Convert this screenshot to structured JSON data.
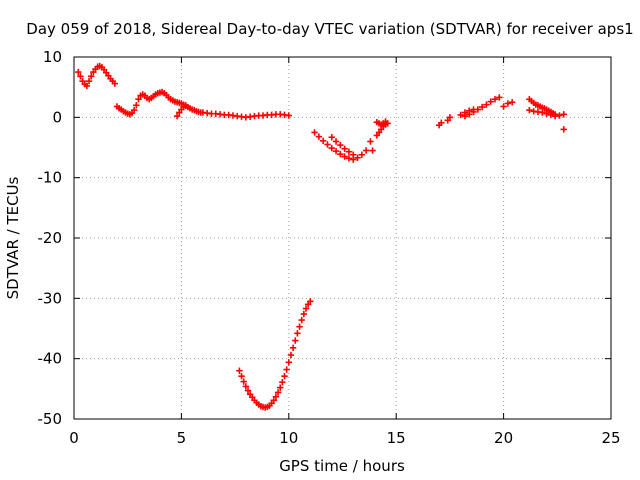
{
  "chart_data": {
    "type": "scatter",
    "title": "Day 059 of 2018, Sidereal Day-to-day VTEC variation (SDTVAR) for receiver aps1",
    "xlabel": "GPS time / hours",
    "ylabel": "SDTVAR / TECUs",
    "xlim": [
      0,
      25
    ],
    "ylim": [
      -50,
      10
    ],
    "xticks": [
      0,
      5,
      10,
      15,
      20,
      25
    ],
    "yticks": [
      10,
      0,
      -10,
      -20,
      -30,
      -40,
      -50
    ],
    "xtick_labels": [
      "0",
      "5",
      "10",
      "15",
      "20",
      "25"
    ],
    "ytick_labels": [
      "10",
      "0",
      "-10",
      "-20",
      "-30",
      "-40",
      "-50"
    ],
    "grid": true,
    "marker": "+",
    "color": "#ff0000",
    "series": [
      {
        "name": "aps1 SDTVAR",
        "segments": [
          {
            "x": [
              0.2,
              0.3,
              0.4,
              0.5,
              0.6,
              0.7,
              0.8,
              0.9,
              1.0,
              1.1,
              1.2,
              1.3,
              1.4,
              1.5,
              1.6,
              1.7,
              1.8,
              1.9
            ],
            "y": [
              7.5,
              6.8,
              6.0,
              5.5,
              5.2,
              6.0,
              6.8,
              7.5,
              8.0,
              8.4,
              8.5,
              8.3,
              7.9,
              7.4,
              6.9,
              6.4,
              6.0,
              5.6
            ]
          },
          {
            "x": [
              2.0,
              2.1,
              2.2,
              2.3,
              2.4,
              2.5,
              2.6,
              2.7,
              2.8,
              2.9,
              3.0,
              3.1,
              3.2,
              3.3,
              3.4,
              3.5,
              3.6,
              3.7,
              3.8,
              3.9,
              4.0,
              4.1,
              4.2,
              4.3,
              4.4,
              4.5,
              4.6,
              4.7,
              4.8,
              4.9,
              5.0,
              5.1,
              5.2,
              5.3,
              5.4,
              5.5,
              5.6,
              5.7,
              5.8,
              5.9,
              6.0,
              6.2,
              6.4,
              6.6,
              6.8,
              7.0,
              7.2,
              7.4,
              7.6,
              7.8,
              8.0,
              8.2,
              8.4,
              8.6,
              8.8,
              9.0,
              9.2,
              9.4,
              9.6,
              9.8,
              10.0
            ],
            "y": [
              1.8,
              1.5,
              1.3,
              1.0,
              0.8,
              0.6,
              0.5,
              0.7,
              1.2,
              2.0,
              3.0,
              3.6,
              3.8,
              3.6,
              3.2,
              3.0,
              3.2,
              3.5,
              3.8,
              4.0,
              4.1,
              4.2,
              4.0,
              3.7,
              3.3,
              3.0,
              2.8,
              2.6,
              2.5,
              2.4,
              2.3,
              2.1,
              1.9,
              1.7,
              1.5,
              1.3,
              1.2,
              1.0,
              0.9,
              0.8,
              0.8,
              0.7,
              0.6,
              0.6,
              0.5,
              0.4,
              0.4,
              0.3,
              0.2,
              0.1,
              0.0,
              0.1,
              0.2,
              0.3,
              0.3,
              0.4,
              0.4,
              0.5,
              0.5,
              0.4,
              0.3
            ]
          },
          {
            "x": [
              4.8,
              4.9,
              5.0,
              5.1,
              5.2
            ],
            "y": [
              0.2,
              0.8,
              1.3,
              1.7,
              2.0
            ]
          },
          {
            "x": [
              7.7,
              7.8,
              7.9,
              8.0,
              8.1,
              8.2,
              8.3,
              8.4,
              8.5,
              8.6,
              8.7,
              8.8,
              8.9,
              9.0,
              9.1,
              9.2,
              9.3,
              9.4,
              9.5,
              9.6,
              9.7,
              9.8,
              9.9,
              10.0,
              10.1,
              10.2,
              10.3,
              10.4,
              10.5,
              10.6,
              10.7,
              10.8,
              10.9,
              11.0
            ],
            "y": [
              -42.0,
              -42.9,
              -43.8,
              -44.6,
              -45.3,
              -45.9,
              -46.4,
              -46.9,
              -47.3,
              -47.6,
              -47.9,
              -48.0,
              -48.1,
              -48.0,
              -47.8,
              -47.4,
              -46.9,
              -46.3,
              -45.6,
              -44.8,
              -43.9,
              -42.9,
              -41.8,
              -40.6,
              -39.4,
              -38.2,
              -37.0,
              -35.8,
              -34.7,
              -33.6,
              -32.6,
              -31.7,
              -31.0,
              -30.5
            ]
          },
          {
            "x": [
              11.2,
              11.4,
              11.6,
              11.8,
              12.0,
              12.2,
              12.4,
              12.6,
              12.8,
              13.0,
              13.2,
              13.4,
              13.6
            ],
            "y": [
              -2.5,
              -3.2,
              -3.9,
              -4.5,
              -5.1,
              -5.6,
              -6.1,
              -6.5,
              -6.8,
              -7.0,
              -6.7,
              -6.2,
              -5.5
            ]
          },
          {
            "x": [
              12.0,
              12.2,
              12.4,
              12.6,
              12.8,
              13.0
            ],
            "y": [
              -3.3,
              -4.0,
              -4.6,
              -5.2,
              -5.7,
              -6.2
            ]
          },
          {
            "x": [
              13.8,
              13.9
            ],
            "y": [
              -4.0,
              -5.5
            ]
          },
          {
            "x": [
              14.1,
              14.2,
              14.3,
              14.4,
              14.5,
              14.6
            ],
            "y": [
              -3.0,
              -2.5,
              -2.0,
              -1.5,
              -1.2,
              -1.0
            ]
          },
          {
            "x": [
              14.1,
              14.2,
              14.3,
              14.4,
              14.5
            ],
            "y": [
              -0.8,
              -1.0,
              -1.2,
              -1.0,
              -0.7
            ]
          },
          {
            "x": [
              17.0,
              17.1,
              17.4,
              17.5
            ],
            "y": [
              -1.3,
              -0.9,
              -0.5,
              0.0
            ]
          },
          {
            "x": [
              18.2,
              18.4,
              18.6,
              18.8,
              19.0,
              19.2,
              19.4,
              19.6,
              19.8
            ],
            "y": [
              0.2,
              0.5,
              0.9,
              1.3,
              1.7,
              2.1,
              2.6,
              3.0,
              3.3
            ]
          },
          {
            "x": [
              18.0,
              18.2,
              18.4,
              18.6
            ],
            "y": [
              0.4,
              0.8,
              1.1,
              1.3
            ]
          },
          {
            "x": [
              20.0,
              20.2,
              20.4
            ],
            "y": [
              1.8,
              2.3,
              2.5
            ]
          },
          {
            "x": [
              21.2,
              21.3,
              21.4,
              21.5,
              21.6,
              21.7,
              21.8,
              21.9,
              22.0,
              22.1,
              22.2,
              22.3,
              22.4
            ],
            "y": [
              3.0,
              2.7,
              2.4,
              2.1,
              2.0,
              1.8,
              1.6,
              1.5,
              1.3,
              1.1,
              0.9,
              0.7,
              0.5
            ]
          },
          {
            "x": [
              21.2,
              21.4,
              21.6,
              21.8,
              22.0,
              22.2,
              22.4
            ],
            "y": [
              1.2,
              1.0,
              0.9,
              0.8,
              0.6,
              0.4,
              0.2
            ]
          },
          {
            "x": [
              22.6,
              22.8,
              22.8
            ],
            "y": [
              0.3,
              0.5,
              -2.0
            ]
          }
        ]
      }
    ]
  }
}
